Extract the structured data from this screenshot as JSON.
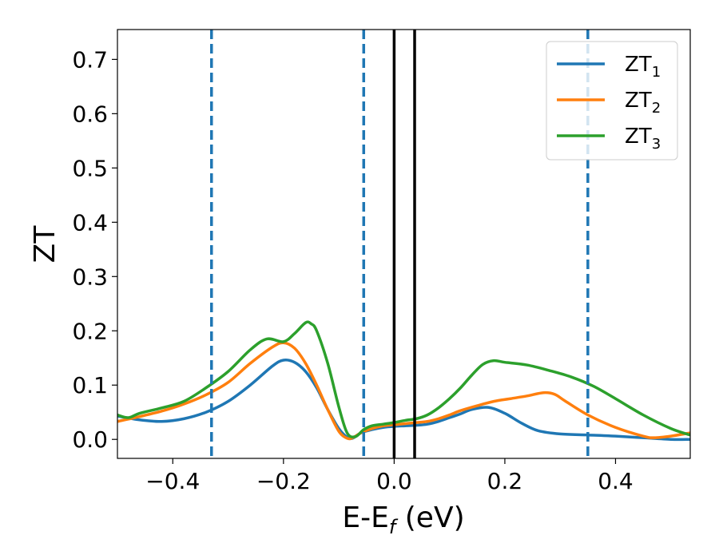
{
  "chart_data": {
    "type": "line",
    "title": "",
    "xlabel": "E-E_f (eV)",
    "xlabel_main": "E-E",
    "xlabel_sub": "f",
    "xlabel_unit": " (eV)",
    "ylabel": "ZT",
    "xlim": [
      -0.5,
      0.535
    ],
    "ylim": [
      -0.035,
      0.755
    ],
    "xticks": [
      -0.4,
      -0.2,
      0.0,
      0.2,
      0.4
    ],
    "xtick_labels": [
      "−0.4",
      "−0.2",
      "0.0",
      "0.2",
      "0.4"
    ],
    "yticks": [
      0.0,
      0.1,
      0.2,
      0.3,
      0.4,
      0.5,
      0.6,
      0.7
    ],
    "ytick_labels": [
      "0.0",
      "0.1",
      "0.2",
      "0.3",
      "0.4",
      "0.5",
      "0.6",
      "0.7"
    ],
    "grid": false,
    "legend_position": "top-right",
    "vlines_dashed": {
      "x": [
        -0.33,
        -0.055,
        0.35
      ],
      "color": "#1f77b4"
    },
    "vlines_solid": {
      "x": [
        0.0,
        0.037
      ],
      "color": "#000000"
    },
    "series": [
      {
        "name": "ZT",
        "name_sub": "1",
        "color": "#1f77b4",
        "x": [
          -0.5,
          -0.46,
          -0.42,
          -0.38,
          -0.34,
          -0.3,
          -0.26,
          -0.22,
          -0.2,
          -0.18,
          -0.16,
          -0.14,
          -0.12,
          -0.1,
          -0.085,
          -0.075,
          -0.06,
          -0.04,
          -0.02,
          0.0,
          0.02,
          0.04,
          0.06,
          0.08,
          0.1,
          0.12,
          0.14,
          0.17,
          0.2,
          0.23,
          0.26,
          0.3,
          0.35,
          0.4,
          0.45,
          0.5,
          0.535
        ],
        "y": [
          0.043,
          0.036,
          0.033,
          0.038,
          0.05,
          0.07,
          0.1,
          0.135,
          0.146,
          0.142,
          0.125,
          0.095,
          0.055,
          0.02,
          0.004,
          0.002,
          0.012,
          0.018,
          0.022,
          0.024,
          0.025,
          0.026,
          0.028,
          0.033,
          0.04,
          0.047,
          0.055,
          0.059,
          0.048,
          0.03,
          0.016,
          0.01,
          0.008,
          0.006,
          0.003,
          0.0,
          0.0
        ]
      },
      {
        "name": "ZT",
        "name_sub": "2",
        "color": "#ff7f0e",
        "x": [
          -0.5,
          -0.46,
          -0.42,
          -0.38,
          -0.34,
          -0.3,
          -0.26,
          -0.22,
          -0.2,
          -0.18,
          -0.16,
          -0.14,
          -0.12,
          -0.1,
          -0.085,
          -0.075,
          -0.06,
          -0.04,
          -0.02,
          0.0,
          0.02,
          0.04,
          0.06,
          0.08,
          0.1,
          0.12,
          0.15,
          0.18,
          0.21,
          0.24,
          0.27,
          0.29,
          0.31,
          0.35,
          0.4,
          0.45,
          0.47,
          0.5,
          0.535
        ],
        "y": [
          0.033,
          0.042,
          0.052,
          0.065,
          0.082,
          0.105,
          0.14,
          0.17,
          0.178,
          0.168,
          0.14,
          0.1,
          0.055,
          0.015,
          0.002,
          0.003,
          0.012,
          0.02,
          0.025,
          0.027,
          0.029,
          0.031,
          0.033,
          0.038,
          0.045,
          0.053,
          0.062,
          0.07,
          0.075,
          0.08,
          0.086,
          0.083,
          0.07,
          0.045,
          0.022,
          0.006,
          0.003,
          0.006,
          0.012
        ]
      },
      {
        "name": "ZT",
        "name_sub": "3",
        "color": "#2ca02c",
        "x": [
          -0.5,
          -0.48,
          -0.46,
          -0.42,
          -0.38,
          -0.34,
          -0.3,
          -0.26,
          -0.23,
          -0.2,
          -0.18,
          -0.16,
          -0.15,
          -0.14,
          -0.12,
          -0.1,
          -0.085,
          -0.07,
          -0.055,
          -0.04,
          -0.02,
          0.0,
          0.02,
          0.04,
          0.06,
          0.08,
          0.1,
          0.12,
          0.14,
          0.16,
          0.18,
          0.2,
          0.24,
          0.28,
          0.32,
          0.36,
          0.4,
          0.45,
          0.5,
          0.535
        ],
        "y": [
          0.045,
          0.04,
          0.048,
          0.058,
          0.07,
          0.095,
          0.125,
          0.165,
          0.185,
          0.18,
          0.195,
          0.215,
          0.213,
          0.2,
          0.14,
          0.06,
          0.012,
          0.005,
          0.018,
          0.025,
          0.028,
          0.031,
          0.035,
          0.038,
          0.045,
          0.058,
          0.075,
          0.095,
          0.118,
          0.138,
          0.145,
          0.142,
          0.137,
          0.127,
          0.115,
          0.098,
          0.075,
          0.045,
          0.02,
          0.008
        ]
      }
    ]
  }
}
